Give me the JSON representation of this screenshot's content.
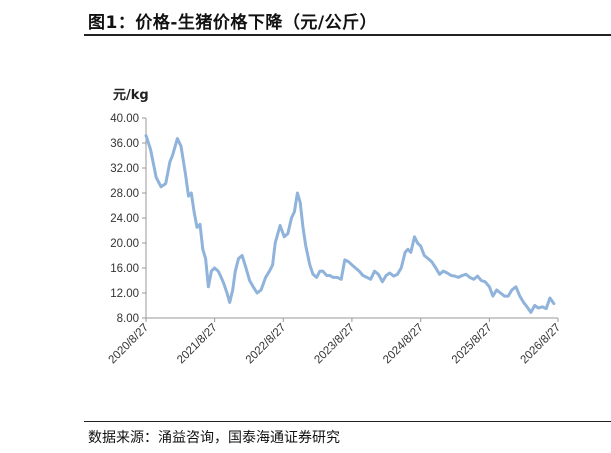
{
  "header": {
    "title": "图1：价格-生猪价格下降（元/公斤）"
  },
  "footer": {
    "source": "数据来源：涌益咨询，国泰海通证券研究"
  },
  "chart_data": {
    "type": "line",
    "ylabel": "元/kg",
    "ylim": [
      8,
      40
    ],
    "yticks": [
      8,
      12,
      16,
      20,
      24,
      28,
      32,
      36,
      40
    ],
    "ytick_labels": [
      "8.00",
      "12.00",
      "16.00",
      "20.00",
      "24.00",
      "28.00",
      "32.00",
      "36.00",
      "40.00"
    ],
    "xlim": [
      "2020-08-27",
      "2026-08-27"
    ],
    "xticks": [
      "2020-08-27",
      "2021-08-27",
      "2022-08-27",
      "2023-08-27",
      "2024-08-27",
      "2025-08-27",
      "2026-08-27"
    ],
    "xtick_labels": [
      "2020/8/27",
      "2021/8/27",
      "2022/8/27",
      "2023/8/27",
      "2024/8/27",
      "2025/8/27",
      "2026/8/27"
    ],
    "grid": false,
    "colors": {
      "line": "#8fb3da",
      "axis": "#999999"
    },
    "series": [
      {
        "x": [
          "2020-08-27",
          "2020-09-20",
          "2020-10-20",
          "2020-11-15",
          "2020-12-10",
          "2021-01-01",
          "2021-01-15",
          "2021-02-10",
          "2021-03-01",
          "2021-03-25",
          "2021-04-10",
          "2021-04-25",
          "2021-05-10",
          "2021-05-25",
          "2021-06-10",
          "2021-06-25",
          "2021-07-10",
          "2021-07-25",
          "2021-08-10",
          "2021-08-27",
          "2021-09-15",
          "2021-10-01",
          "2021-10-15",
          "2021-11-01",
          "2021-11-15",
          "2021-12-01",
          "2021-12-15",
          "2022-01-01",
          "2022-01-20",
          "2022-02-10",
          "2022-03-01",
          "2022-03-20",
          "2022-04-10",
          "2022-05-01",
          "2022-05-25",
          "2022-06-15",
          "2022-07-01",
          "2022-07-15",
          "2022-08-10",
          "2022-09-01",
          "2022-09-20",
          "2022-10-10",
          "2022-10-25",
          "2022-11-10",
          "2022-11-25",
          "2022-12-10",
          "2022-12-25",
          "2023-01-15",
          "2023-02-01",
          "2023-02-20",
          "2023-03-10",
          "2023-03-25",
          "2023-04-15",
          "2023-05-01",
          "2023-05-20",
          "2023-06-10",
          "2023-07-01",
          "2023-07-20",
          "2023-08-10",
          "2023-08-27",
          "2023-09-15",
          "2023-10-05",
          "2023-10-25",
          "2023-11-15",
          "2023-12-05",
          "2023-12-25",
          "2024-01-15",
          "2024-02-05",
          "2024-02-25",
          "2024-03-15",
          "2024-04-05",
          "2024-04-25",
          "2024-05-15",
          "2024-06-05",
          "2024-06-20",
          "2024-07-05",
          "2024-07-25",
          "2024-08-10",
          "2024-08-27",
          "2024-09-15",
          "2024-10-05",
          "2024-10-25",
          "2024-11-15",
          "2024-12-05",
          "2024-12-25",
          "2025-01-15",
          "2025-02-05",
          "2025-02-25",
          "2025-03-15",
          "2025-04-05",
          "2025-04-25",
          "2025-05-15",
          "2025-06-05",
          "2025-06-25",
          "2025-07-15",
          "2025-08-05",
          "2025-08-27",
          "2025-09-15",
          "2025-10-05",
          "2025-10-25",
          "2025-11-15",
          "2025-12-05",
          "2025-12-25",
          "2026-01-15",
          "2026-02-05",
          "2026-02-25",
          "2026-03-15",
          "2026-04-05",
          "2026-04-25",
          "2026-05-15",
          "2026-06-05",
          "2026-06-25",
          "2026-07-15",
          "2026-08-05"
        ],
        "y": [
          37.2,
          35.0,
          30.5,
          29.0,
          29.5,
          33.0,
          34.0,
          36.7,
          35.5,
          31.0,
          27.5,
          28.0,
          25.0,
          22.5,
          23.0,
          19.0,
          17.5,
          13.0,
          15.5,
          16.0,
          15.5,
          14.5,
          13.5,
          12.0,
          10.5,
          12.5,
          15.5,
          17.5,
          18.0,
          16.0,
          14.0,
          13.0,
          12.0,
          12.5,
          14.5,
          15.5,
          16.5,
          20.0,
          22.8,
          21.0,
          21.5,
          24.0,
          25.0,
          28.0,
          26.5,
          22.5,
          19.5,
          16.5,
          15.0,
          14.5,
          15.5,
          15.5,
          14.8,
          14.8,
          14.5,
          14.5,
          14.2,
          17.3,
          17.0,
          16.5,
          16.0,
          15.5,
          14.8,
          14.5,
          14.2,
          15.5,
          15.0,
          13.8,
          14.8,
          15.2,
          14.7,
          15.0,
          16.0,
          18.5,
          19.0,
          18.5,
          21.0,
          20.0,
          19.5,
          18.0,
          17.5,
          17.0,
          16.0,
          15.0,
          15.5,
          15.2,
          14.8,
          14.7,
          14.5,
          14.8,
          15.0,
          14.5,
          14.2,
          14.7,
          14.0,
          13.8,
          13.0,
          11.5,
          12.5,
          12.0,
          11.5,
          11.5,
          12.5,
          13.0,
          11.5,
          10.5,
          9.8,
          8.9,
          10.0,
          9.6,
          9.8,
          9.5,
          11.2,
          10.3
        ]
      }
    ]
  }
}
